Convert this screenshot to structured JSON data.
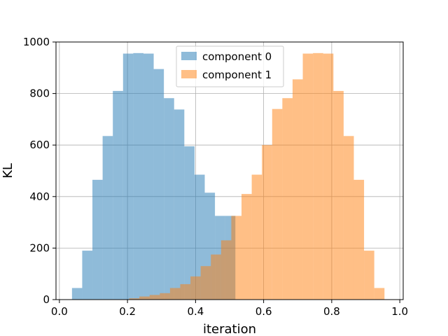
{
  "chart_data": {
    "type": "bar",
    "xlabel": "iteration",
    "ylabel": "KL",
    "xlim": [
      -0.01,
      1.01
    ],
    "ylim": [
      0,
      1000
    ],
    "xticks": [
      {
        "value": 0.0,
        "label": "0.0"
      },
      {
        "value": 0.2,
        "label": "0.2"
      },
      {
        "value": 0.4,
        "label": "0.4"
      },
      {
        "value": 0.6,
        "label": "0.6"
      },
      {
        "value": 0.8,
        "label": "0.8"
      },
      {
        "value": 1.0,
        "label": "1.0"
      }
    ],
    "yticks": [
      {
        "value": 0,
        "label": "0"
      },
      {
        "value": 200,
        "label": "200"
      },
      {
        "value": 400,
        "label": "400"
      },
      {
        "value": 600,
        "label": "600"
      },
      {
        "value": 800,
        "label": "800"
      },
      {
        "value": 1000,
        "label": "1000"
      }
    ],
    "grid": true,
    "legend_position": "top-center",
    "series": [
      {
        "name": "component 0",
        "color": "#1f77b4",
        "alpha": 0.5,
        "bins": [
          {
            "x0": 0.037,
            "x1": 0.067,
            "y": 45
          },
          {
            "x0": 0.067,
            "x1": 0.097,
            "y": 190
          },
          {
            "x0": 0.097,
            "x1": 0.127,
            "y": 465
          },
          {
            "x0": 0.127,
            "x1": 0.157,
            "y": 635
          },
          {
            "x0": 0.157,
            "x1": 0.187,
            "y": 810
          },
          {
            "x0": 0.187,
            "x1": 0.217,
            "y": 955
          },
          {
            "x0": 0.217,
            "x1": 0.247,
            "y": 957
          },
          {
            "x0": 0.247,
            "x1": 0.277,
            "y": 955
          },
          {
            "x0": 0.277,
            "x1": 0.307,
            "y": 895
          },
          {
            "x0": 0.307,
            "x1": 0.337,
            "y": 782
          },
          {
            "x0": 0.337,
            "x1": 0.367,
            "y": 738
          },
          {
            "x0": 0.367,
            "x1": 0.397,
            "y": 595
          },
          {
            "x0": 0.397,
            "x1": 0.427,
            "y": 485
          },
          {
            "x0": 0.427,
            "x1": 0.457,
            "y": 415
          },
          {
            "x0": 0.457,
            "x1": 0.487,
            "y": 325
          },
          {
            "x0": 0.487,
            "x1": 0.517,
            "y": 325
          }
        ]
      },
      {
        "name": "component 1",
        "color": "#ff7f0e",
        "alpha": 0.5,
        "bins": [
          {
            "x0": 0.205,
            "x1": 0.235,
            "y": 5
          },
          {
            "x0": 0.235,
            "x1": 0.265,
            "y": 12
          },
          {
            "x0": 0.265,
            "x1": 0.295,
            "y": 18
          },
          {
            "x0": 0.295,
            "x1": 0.325,
            "y": 25
          },
          {
            "x0": 0.325,
            "x1": 0.355,
            "y": 45
          },
          {
            "x0": 0.355,
            "x1": 0.385,
            "y": 60
          },
          {
            "x0": 0.385,
            "x1": 0.415,
            "y": 90
          },
          {
            "x0": 0.415,
            "x1": 0.445,
            "y": 130
          },
          {
            "x0": 0.445,
            "x1": 0.475,
            "y": 175
          },
          {
            "x0": 0.475,
            "x1": 0.505,
            "y": 230
          },
          {
            "x0": 0.505,
            "x1": 0.535,
            "y": 325
          },
          {
            "x0": 0.535,
            "x1": 0.565,
            "y": 410
          },
          {
            "x0": 0.565,
            "x1": 0.595,
            "y": 485
          },
          {
            "x0": 0.595,
            "x1": 0.625,
            "y": 600
          },
          {
            "x0": 0.625,
            "x1": 0.655,
            "y": 740
          },
          {
            "x0": 0.655,
            "x1": 0.685,
            "y": 782
          },
          {
            "x0": 0.685,
            "x1": 0.715,
            "y": 855
          },
          {
            "x0": 0.715,
            "x1": 0.745,
            "y": 955
          },
          {
            "x0": 0.745,
            "x1": 0.775,
            "y": 957
          },
          {
            "x0": 0.775,
            "x1": 0.805,
            "y": 955
          },
          {
            "x0": 0.805,
            "x1": 0.835,
            "y": 810
          },
          {
            "x0": 0.835,
            "x1": 0.865,
            "y": 635
          },
          {
            "x0": 0.865,
            "x1": 0.895,
            "y": 465
          },
          {
            "x0": 0.895,
            "x1": 0.925,
            "y": 190
          },
          {
            "x0": 0.925,
            "x1": 0.955,
            "y": 45
          }
        ]
      }
    ]
  }
}
